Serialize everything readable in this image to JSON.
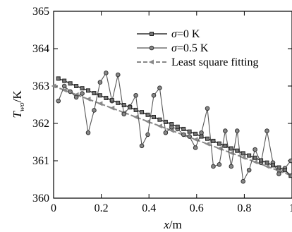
{
  "chart_data": {
    "type": "line",
    "xlabel": "x/m",
    "xlabel_var": "x",
    "xlabel_unit": "/m",
    "ylabel": "T_wo/K",
    "ylabel_var": "T",
    "ylabel_sub": "wo",
    "ylabel_unit": "/K",
    "xlim": [
      0,
      1.0
    ],
    "ylim": [
      360,
      365
    ],
    "x_ticks": [
      0,
      0.2,
      0.4,
      0.6,
      0.8,
      1.0
    ],
    "x_tick_labels": [
      "0",
      "0.2",
      "0.4",
      "0.6",
      "0.8",
      "1"
    ],
    "y_ticks": [
      360,
      361,
      362,
      363,
      364,
      365
    ],
    "y_tick_labels": [
      "360",
      "361",
      "362",
      "363",
      "364",
      "365"
    ],
    "grid": false,
    "legend_position": "top-right",
    "series": [
      {
        "name": "σ=0 K",
        "legend_var": "σ",
        "legend_rest": "=0 K",
        "marker": "square",
        "color": "#333333",
        "x": [
          0.02,
          0.045,
          0.07,
          0.095,
          0.12,
          0.145,
          0.17,
          0.195,
          0.22,
          0.245,
          0.27,
          0.295,
          0.32,
          0.345,
          0.37,
          0.395,
          0.42,
          0.445,
          0.47,
          0.495,
          0.52,
          0.545,
          0.57,
          0.595,
          0.62,
          0.645,
          0.67,
          0.695,
          0.72,
          0.745,
          0.77,
          0.795,
          0.82,
          0.845,
          0.87,
          0.895,
          0.92,
          0.945,
          0.97,
          0.995
        ],
        "y": [
          363.2,
          363.14,
          363.07,
          363.0,
          362.94,
          362.88,
          362.81,
          362.75,
          362.68,
          362.62,
          362.55,
          362.49,
          362.43,
          362.36,
          362.3,
          362.23,
          362.17,
          362.1,
          362.04,
          361.98,
          361.91,
          361.85,
          361.78,
          361.72,
          361.65,
          361.59,
          361.53,
          361.46,
          361.4,
          361.33,
          361.27,
          361.2,
          361.14,
          361.08,
          361.01,
          360.95,
          360.88,
          360.82,
          360.75,
          360.6
        ]
      },
      {
        "name": "σ=0.5 K",
        "legend_var": "σ",
        "legend_rest": "=0.5 K",
        "marker": "circle",
        "color": "#555555",
        "x": [
          0.02,
          0.045,
          0.07,
          0.095,
          0.12,
          0.145,
          0.17,
          0.195,
          0.22,
          0.245,
          0.27,
          0.295,
          0.32,
          0.345,
          0.37,
          0.395,
          0.42,
          0.445,
          0.47,
          0.495,
          0.52,
          0.545,
          0.57,
          0.595,
          0.62,
          0.645,
          0.67,
          0.695,
          0.72,
          0.745,
          0.77,
          0.795,
          0.82,
          0.845,
          0.87,
          0.895,
          0.92,
          0.945,
          0.97,
          0.995
        ],
        "y": [
          362.6,
          363.0,
          362.85,
          362.7,
          362.8,
          361.75,
          362.35,
          363.1,
          363.35,
          362.6,
          363.3,
          362.25,
          362.45,
          362.75,
          361.4,
          361.7,
          362.75,
          362.95,
          361.75,
          361.9,
          361.85,
          361.7,
          361.65,
          361.35,
          361.75,
          362.4,
          360.85,
          360.9,
          361.8,
          360.85,
          361.8,
          360.45,
          360.75,
          361.3,
          360.95,
          361.8,
          360.95,
          360.65,
          360.8,
          361.0
        ]
      },
      {
        "name": "Least square fitting",
        "marker": "triangle-left",
        "color": "#888888",
        "x": [
          0.0,
          0.045,
          0.095,
          0.145,
          0.195,
          0.245,
          0.295,
          0.345,
          0.395,
          0.445,
          0.495,
          0.545,
          0.595,
          0.645,
          0.695,
          0.745,
          0.795,
          0.845,
          0.895,
          0.945,
          0.995
        ],
        "y": [
          363.0,
          362.89,
          362.77,
          362.65,
          362.53,
          362.41,
          362.29,
          362.17,
          362.05,
          361.93,
          361.81,
          361.69,
          361.57,
          361.45,
          361.33,
          361.21,
          361.09,
          360.97,
          360.85,
          360.73,
          360.61
        ]
      }
    ]
  }
}
